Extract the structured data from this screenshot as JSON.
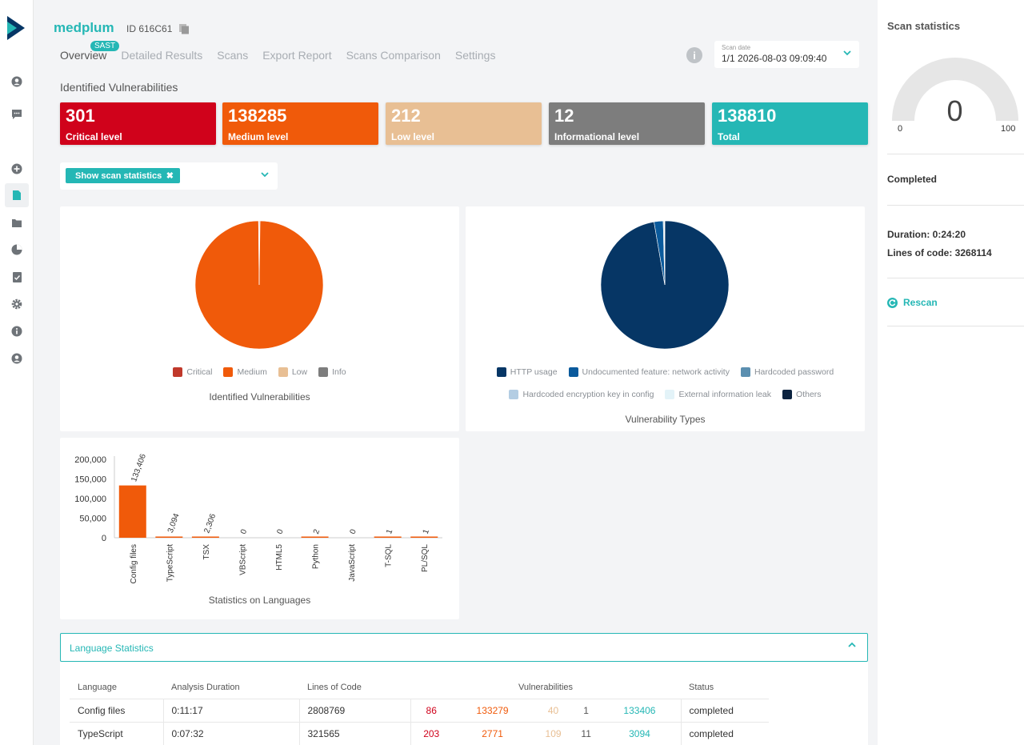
{
  "header": {
    "app_name": "medplum",
    "app_id": "ID 616C61",
    "sast_badge": "SAST",
    "tabs": [
      {
        "label": "Overview",
        "active": true
      },
      {
        "label": "Detailed Results"
      },
      {
        "label": "Scans"
      },
      {
        "label": "Export Report"
      },
      {
        "label": "Scans Comparison"
      },
      {
        "label": "Settings"
      }
    ],
    "info_icon": "i",
    "scan_date_label": "Scan date",
    "scan_date_value": "1/1 2026-08-03 09:09:40"
  },
  "sidebar": {
    "icons": [
      "user-icon",
      "chat-icon",
      "add-icon",
      "document-icon",
      "folder-icon",
      "pie-chart-icon",
      "report-check-icon",
      "gear-icon",
      "info-icon",
      "account-icon"
    ]
  },
  "section_title": "Identified Vulnerabilities",
  "cards": [
    {
      "value": "301",
      "label": "Critical level",
      "color": "#d0021b"
    },
    {
      "value": "138285",
      "label": "Medium level",
      "color": "#f05a0a"
    },
    {
      "value": "212",
      "label": "Low level",
      "color": "#e8bf94"
    },
    {
      "value": "12",
      "label": "Informational level",
      "color": "#7d7d7d"
    },
    {
      "value": "138810",
      "label": "Total",
      "color": "#25b7b5"
    }
  ],
  "filter": {
    "chip_label": "Show scan statistics",
    "chip_close": "✖"
  },
  "chart_data": [
    {
      "type": "pie",
      "title": "Identified Vulnerabilities",
      "labels": [
        "Critical",
        "Medium",
        "Low",
        "Info"
      ],
      "values": [
        301,
        138285,
        212,
        12
      ],
      "colors": [
        "#c0392b",
        "#f05a0a",
        "#e8bf94",
        "#7d7d7d"
      ]
    },
    {
      "type": "pie",
      "title": "Vulnerability Types",
      "labels": [
        "HTTP usage",
        "Undocumented feature: network activity",
        "Hardcoded password",
        "Hardcoded encryption key in config",
        "External information leak",
        "Others"
      ],
      "values": [
        97.3,
        2.3,
        0.2,
        0.1,
        0.05,
        0.05
      ],
      "colors": [
        "#063665",
        "#0a5a9c",
        "#5b8fb0",
        "#b3cde3",
        "#e3f3f8",
        "#0c2340"
      ]
    },
    {
      "type": "bar",
      "title": "Statistics on Languages",
      "categories": [
        "Config files",
        "TypeScript",
        "TSX",
        "VBScript",
        "HTML5",
        "Python",
        "JavaScript",
        "T-SQL",
        "PL/SQL"
      ],
      "values": [
        133406,
        3094,
        2306,
        0,
        0,
        2,
        0,
        1,
        1
      ],
      "value_labels": [
        "133,406",
        "3,094",
        "2,306",
        "0",
        "0",
        "2",
        "0",
        "1",
        "1"
      ],
      "yticks": [
        "200,000",
        "150,000",
        "100,000",
        "50,000",
        "0"
      ],
      "ylim": [
        0,
        200000
      ],
      "color": "#f05a0a"
    }
  ],
  "language_statistics": {
    "title": "Language Statistics",
    "columns": [
      "Language",
      "Analysis Duration",
      "Lines of Code",
      "Vulnerabilities",
      "Status"
    ],
    "rows": [
      {
        "language": "Config files",
        "duration": "0:11:17",
        "loc": "2808769",
        "critical": "86",
        "medium": "133279",
        "low": "40",
        "info": "1",
        "total": "133406",
        "status": "completed"
      },
      {
        "language": "TypeScript",
        "duration": "0:07:32",
        "loc": "321565",
        "critical": "203",
        "medium": "2771",
        "low": "109",
        "info": "11",
        "total": "3094",
        "status": "completed"
      }
    ]
  },
  "scan_statistics": {
    "title": "Scan statistics",
    "gauge_value": "0",
    "gauge_min": "0",
    "gauge_max": "100",
    "status": "Completed",
    "duration": "Duration: 0:24:20",
    "lines_of_code": "Lines of code: 3268114",
    "rescan_label": "Rescan"
  }
}
